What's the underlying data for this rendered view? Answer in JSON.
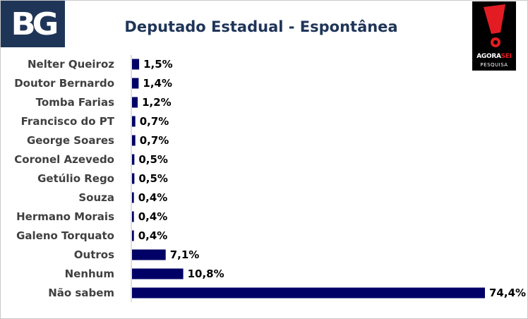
{
  "header": {
    "logo_text": "BG",
    "agora_logo_word_a": "AGORA",
    "agora_logo_word_b": "SEI",
    "agora_logo_sub": "PESQUISA"
  },
  "colors": {
    "bar": "#000066",
    "title": "#1f3558",
    "bg_logo": "#1f3558",
    "agora_red": "#e31c23"
  },
  "chart_data": {
    "type": "bar",
    "orientation": "horizontal",
    "title": "Deputado Estadual - Espontânea",
    "categories": [
      "Nelter Queiroz",
      "Doutor Bernardo",
      "Tomba Farias",
      "Francisco do PT",
      "George Soares",
      "Coronel Azevedo",
      "Getúlio Rego",
      "Souza",
      "Hermano Morais",
      "Galeno Torquato",
      "Outros",
      "Nenhum",
      "Não sabem"
    ],
    "values": [
      1.5,
      1.4,
      1.2,
      0.7,
      0.7,
      0.5,
      0.5,
      0.4,
      0.4,
      0.4,
      7.1,
      10.8,
      74.4
    ],
    "value_labels": [
      "1,5%",
      "1,4%",
      "1,2%",
      "0,7%",
      "0,7%",
      "0,5%",
      "0,5%",
      "0,4%",
      "0,4%",
      "0,4%",
      "7,1%",
      "10,8%",
      "74,4%"
    ],
    "xlim": [
      0,
      74.4
    ],
    "grid": false,
    "legend": "none"
  }
}
